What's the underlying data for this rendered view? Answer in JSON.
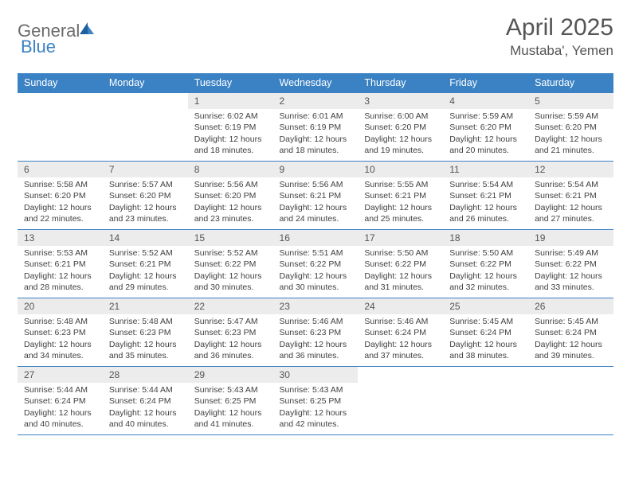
{
  "brand": {
    "part1": "General",
    "part2": "Blue"
  },
  "title": "April 2025",
  "location": "Mustaba', Yemen",
  "colors": {
    "header_bg": "#3b82c4",
    "header_text": "#ffffff",
    "daynum_bg": "#ececec",
    "border": "#3b82c4",
    "logo_gray": "#6b6b6b",
    "logo_blue": "#3b82c4"
  },
  "weekdays": [
    "Sunday",
    "Monday",
    "Tuesday",
    "Wednesday",
    "Thursday",
    "Friday",
    "Saturday"
  ],
  "weeks": [
    [
      {
        "n": "",
        "sr": "",
        "ss": "",
        "dl": ""
      },
      {
        "n": "",
        "sr": "",
        "ss": "",
        "dl": ""
      },
      {
        "n": "1",
        "sr": "Sunrise: 6:02 AM",
        "ss": "Sunset: 6:19 PM",
        "dl": "Daylight: 12 hours and 18 minutes."
      },
      {
        "n": "2",
        "sr": "Sunrise: 6:01 AM",
        "ss": "Sunset: 6:19 PM",
        "dl": "Daylight: 12 hours and 18 minutes."
      },
      {
        "n": "3",
        "sr": "Sunrise: 6:00 AM",
        "ss": "Sunset: 6:20 PM",
        "dl": "Daylight: 12 hours and 19 minutes."
      },
      {
        "n": "4",
        "sr": "Sunrise: 5:59 AM",
        "ss": "Sunset: 6:20 PM",
        "dl": "Daylight: 12 hours and 20 minutes."
      },
      {
        "n": "5",
        "sr": "Sunrise: 5:59 AM",
        "ss": "Sunset: 6:20 PM",
        "dl": "Daylight: 12 hours and 21 minutes."
      }
    ],
    [
      {
        "n": "6",
        "sr": "Sunrise: 5:58 AM",
        "ss": "Sunset: 6:20 PM",
        "dl": "Daylight: 12 hours and 22 minutes."
      },
      {
        "n": "7",
        "sr": "Sunrise: 5:57 AM",
        "ss": "Sunset: 6:20 PM",
        "dl": "Daylight: 12 hours and 23 minutes."
      },
      {
        "n": "8",
        "sr": "Sunrise: 5:56 AM",
        "ss": "Sunset: 6:20 PM",
        "dl": "Daylight: 12 hours and 23 minutes."
      },
      {
        "n": "9",
        "sr": "Sunrise: 5:56 AM",
        "ss": "Sunset: 6:21 PM",
        "dl": "Daylight: 12 hours and 24 minutes."
      },
      {
        "n": "10",
        "sr": "Sunrise: 5:55 AM",
        "ss": "Sunset: 6:21 PM",
        "dl": "Daylight: 12 hours and 25 minutes."
      },
      {
        "n": "11",
        "sr": "Sunrise: 5:54 AM",
        "ss": "Sunset: 6:21 PM",
        "dl": "Daylight: 12 hours and 26 minutes."
      },
      {
        "n": "12",
        "sr": "Sunrise: 5:54 AM",
        "ss": "Sunset: 6:21 PM",
        "dl": "Daylight: 12 hours and 27 minutes."
      }
    ],
    [
      {
        "n": "13",
        "sr": "Sunrise: 5:53 AM",
        "ss": "Sunset: 6:21 PM",
        "dl": "Daylight: 12 hours and 28 minutes."
      },
      {
        "n": "14",
        "sr": "Sunrise: 5:52 AM",
        "ss": "Sunset: 6:21 PM",
        "dl": "Daylight: 12 hours and 29 minutes."
      },
      {
        "n": "15",
        "sr": "Sunrise: 5:52 AM",
        "ss": "Sunset: 6:22 PM",
        "dl": "Daylight: 12 hours and 30 minutes."
      },
      {
        "n": "16",
        "sr": "Sunrise: 5:51 AM",
        "ss": "Sunset: 6:22 PM",
        "dl": "Daylight: 12 hours and 30 minutes."
      },
      {
        "n": "17",
        "sr": "Sunrise: 5:50 AM",
        "ss": "Sunset: 6:22 PM",
        "dl": "Daylight: 12 hours and 31 minutes."
      },
      {
        "n": "18",
        "sr": "Sunrise: 5:50 AM",
        "ss": "Sunset: 6:22 PM",
        "dl": "Daylight: 12 hours and 32 minutes."
      },
      {
        "n": "19",
        "sr": "Sunrise: 5:49 AM",
        "ss": "Sunset: 6:22 PM",
        "dl": "Daylight: 12 hours and 33 minutes."
      }
    ],
    [
      {
        "n": "20",
        "sr": "Sunrise: 5:48 AM",
        "ss": "Sunset: 6:23 PM",
        "dl": "Daylight: 12 hours and 34 minutes."
      },
      {
        "n": "21",
        "sr": "Sunrise: 5:48 AM",
        "ss": "Sunset: 6:23 PM",
        "dl": "Daylight: 12 hours and 35 minutes."
      },
      {
        "n": "22",
        "sr": "Sunrise: 5:47 AM",
        "ss": "Sunset: 6:23 PM",
        "dl": "Daylight: 12 hours and 36 minutes."
      },
      {
        "n": "23",
        "sr": "Sunrise: 5:46 AM",
        "ss": "Sunset: 6:23 PM",
        "dl": "Daylight: 12 hours and 36 minutes."
      },
      {
        "n": "24",
        "sr": "Sunrise: 5:46 AM",
        "ss": "Sunset: 6:24 PM",
        "dl": "Daylight: 12 hours and 37 minutes."
      },
      {
        "n": "25",
        "sr": "Sunrise: 5:45 AM",
        "ss": "Sunset: 6:24 PM",
        "dl": "Daylight: 12 hours and 38 minutes."
      },
      {
        "n": "26",
        "sr": "Sunrise: 5:45 AM",
        "ss": "Sunset: 6:24 PM",
        "dl": "Daylight: 12 hours and 39 minutes."
      }
    ],
    [
      {
        "n": "27",
        "sr": "Sunrise: 5:44 AM",
        "ss": "Sunset: 6:24 PM",
        "dl": "Daylight: 12 hours and 40 minutes."
      },
      {
        "n": "28",
        "sr": "Sunrise: 5:44 AM",
        "ss": "Sunset: 6:24 PM",
        "dl": "Daylight: 12 hours and 40 minutes."
      },
      {
        "n": "29",
        "sr": "Sunrise: 5:43 AM",
        "ss": "Sunset: 6:25 PM",
        "dl": "Daylight: 12 hours and 41 minutes."
      },
      {
        "n": "30",
        "sr": "Sunrise: 5:43 AM",
        "ss": "Sunset: 6:25 PM",
        "dl": "Daylight: 12 hours and 42 minutes."
      },
      {
        "n": "",
        "sr": "",
        "ss": "",
        "dl": ""
      },
      {
        "n": "",
        "sr": "",
        "ss": "",
        "dl": ""
      },
      {
        "n": "",
        "sr": "",
        "ss": "",
        "dl": ""
      }
    ]
  ]
}
